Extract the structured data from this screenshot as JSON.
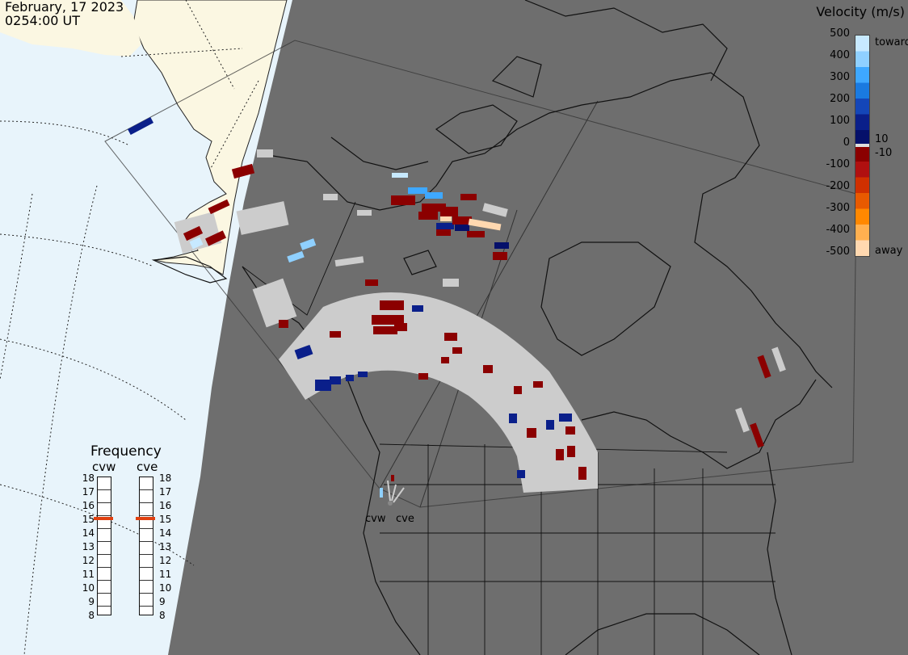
{
  "header": {
    "date": "February, 17 2023",
    "time": "0254:00 UT"
  },
  "legend": {
    "title": "Velocity (m/s)",
    "ticks": [
      "500",
      "400",
      "300",
      "200",
      "100",
      "0",
      "-100",
      "-200",
      "-300",
      "-400",
      "-500"
    ],
    "inner_ticks": [
      "10",
      "-10"
    ],
    "toward_label": "toward",
    "away_label": "away",
    "colors": [
      "#c7e9ff",
      "#8fd0ff",
      "#3ea8ff",
      "#1a7ae0",
      "#1446b8",
      "#0a1f8a",
      "#05106a",
      "#8b0000",
      "#b01010",
      "#d03000",
      "#e85a00",
      "#ff8800",
      "#ffb050",
      "#ffd8b0"
    ]
  },
  "frequency": {
    "title": "Frequency",
    "radars": [
      "cvw",
      "cve"
    ],
    "scale": [
      "18",
      "17",
      "16",
      "15",
      "14",
      "13",
      "12",
      "11",
      "10",
      "9",
      "8"
    ],
    "cvw_mhz": 15,
    "cve_mhz": 15,
    "marker_color": "#e04010"
  },
  "sites": [
    "cvw",
    "cve"
  ],
  "map_colors": {
    "ocean": "#e8f4fb",
    "land_day": "#fbf7e2",
    "night": "#6e6e6e",
    "ground_scatter": "#cccccc"
  }
}
